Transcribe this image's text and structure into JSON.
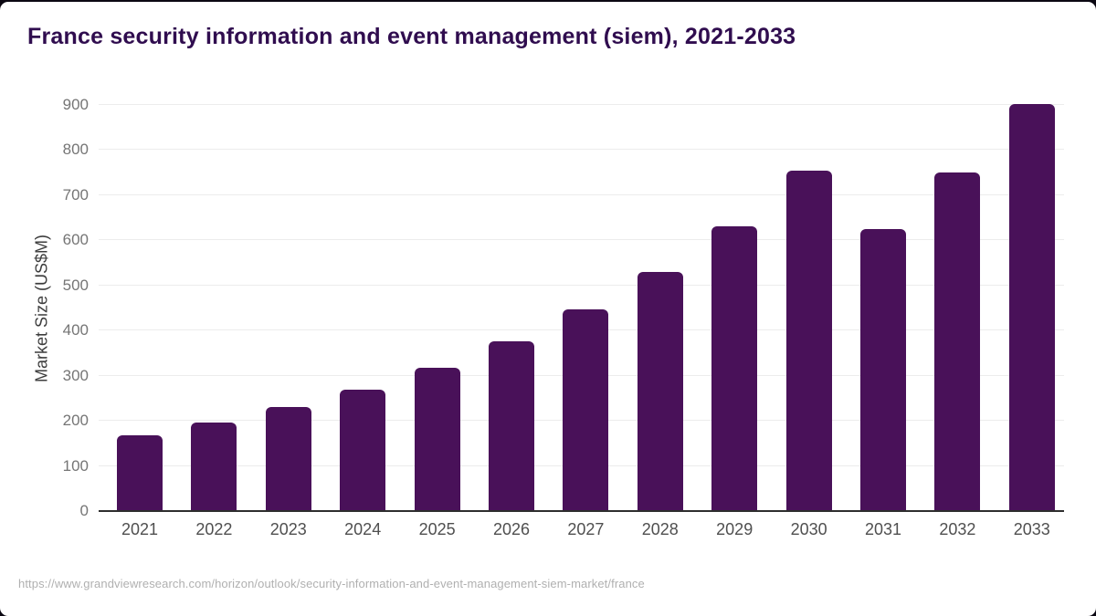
{
  "page": {
    "title": "France security information and event management (siem), 2021-2033",
    "footer_url": "https://www.grandviewresearch.com/horizon/outlook/security-information-and-event-management-siem-market/france"
  },
  "colors": {
    "outer_background": "#0b0812",
    "card_background": "#ffffff",
    "bar": "#491159",
    "title_text": "#300d4f",
    "gridline": "#ececec",
    "axis_line": "#2e2e2e",
    "y_tick_label": "#757575",
    "x_tick_label": "#4f4f4f",
    "y_axis_title": "#3d3d3d",
    "footer_text": "#b0b0b0"
  },
  "chart_data": {
    "type": "bar",
    "title": "France security information and event management (siem), 2021-2033",
    "categories": [
      "2021",
      "2022",
      "2023",
      "2024",
      "2025",
      "2026",
      "2027",
      "2028",
      "2029",
      "2030",
      "2031",
      "2032",
      "2033"
    ],
    "values": [
      167,
      196,
      230,
      270,
      318,
      377,
      447,
      530,
      631,
      755,
      624,
      750,
      903
    ],
    "xlabel": "",
    "ylabel": "Market Size (US$M)",
    "ylim": [
      0,
      900
    ],
    "ytick_step": 100,
    "yticks": [
      0,
      100,
      200,
      300,
      400,
      500,
      600,
      700,
      800,
      900
    ],
    "grid": "horizontal",
    "legend": "none",
    "bar_color": "#491159"
  }
}
